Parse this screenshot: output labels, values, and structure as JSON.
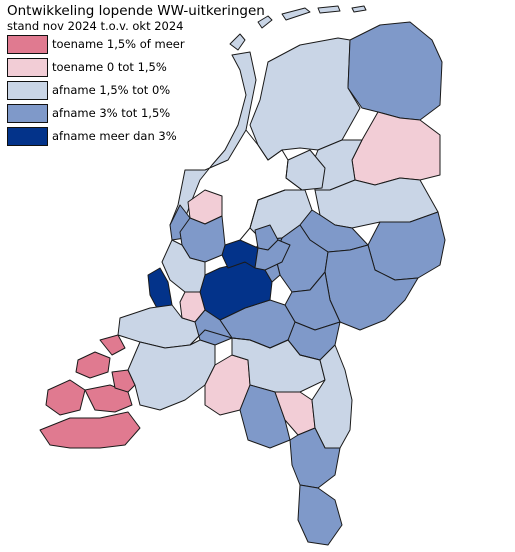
{
  "title": "Ontwikkeling lopende WW-uitkeringen",
  "subtitle": "stand nov 2024 t.o.v. okt 2024",
  "colors": {
    "up_strong": "#e07a90",
    "up": "#f2cdd6",
    "down_small": "#c9d5e6",
    "down": "#7f99c9",
    "down_strong": "#03338a"
  },
  "legend": [
    {
      "label": "toename 1,5% of meer",
      "color": "#e07a90"
    },
    {
      "label": "toename 0 tot 1,5%",
      "color": "#f2cdd6"
    },
    {
      "label": "afname 1,5% tot 0%",
      "color": "#c9d5e6"
    },
    {
      "label": "afname 3% tot 1,5%",
      "color": "#7f99c9"
    },
    {
      "label": "afname meer dan 3%",
      "color": "#03338a"
    }
  ]
}
